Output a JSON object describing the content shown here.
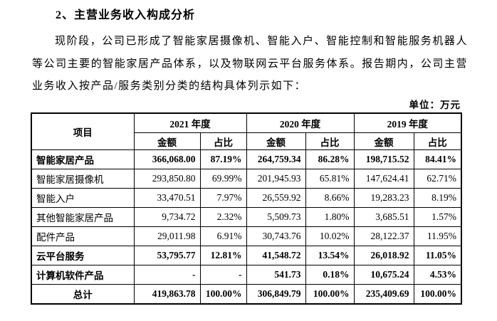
{
  "page": {
    "title": "2、主营业务收入构成分析",
    "paragraph": "现阶段，公司已形成了智能家居摄像机、智能入户、智能控制和智能服务机器人等公司主要的智能家居产品体系，以及物联网云平台服务体系。报告期内，公司主营业务收入按产品/服务类别分类的结构具体列示如下：",
    "unit_label": "单位：万元"
  },
  "table": {
    "item_header": "项目",
    "year_headers": [
      "2021 年度",
      "2020 年度",
      "2019 年度"
    ],
    "sub_headers": [
      "金额",
      "占比"
    ],
    "rows": [
      {
        "label": "智能家居产品",
        "bold": true,
        "center": false,
        "values": [
          "366,068.00",
          "87.19%",
          "264,759.34",
          "86.28%",
          "198,715.52",
          "84.41%"
        ]
      },
      {
        "label": "智能家居摄像机",
        "bold": false,
        "center": false,
        "values": [
          "293,850.80",
          "69.99%",
          "201,945.93",
          "65.81%",
          "147,624.41",
          "62.71%"
        ]
      },
      {
        "label": "智能入户",
        "bold": false,
        "center": false,
        "values": [
          "33,470.51",
          "7.97%",
          "26,559.92",
          "8.66%",
          "19,283.23",
          "8.19%"
        ]
      },
      {
        "label": "其他智能家居产品",
        "bold": false,
        "center": false,
        "values": [
          "9,734.72",
          "2.32%",
          "5,509.73",
          "1.80%",
          "3,685.51",
          "1.57%"
        ]
      },
      {
        "label": "配件产品",
        "bold": false,
        "center": false,
        "values": [
          "29,011.98",
          "6.91%",
          "30,743.76",
          "10.02%",
          "28,122.37",
          "11.95%"
        ]
      },
      {
        "label": "云平台服务",
        "bold": true,
        "center": false,
        "values": [
          "53,795.77",
          "12.81%",
          "41,548.72",
          "13.54%",
          "26,018.92",
          "11.05%"
        ]
      },
      {
        "label": "计算机软件产品",
        "bold": true,
        "center": false,
        "values": [
          "-",
          "-",
          "541.73",
          "0.18%",
          "10,675.24",
          "4.53%"
        ]
      },
      {
        "label": "总计",
        "bold": true,
        "center": true,
        "values": [
          "419,863.78",
          "100.00%",
          "306,849.79",
          "100.00%",
          "235,409.69",
          "100.00%"
        ]
      }
    ]
  }
}
